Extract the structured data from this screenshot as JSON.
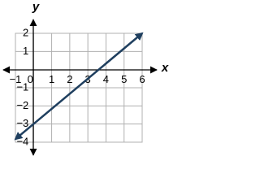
{
  "chart_data": {
    "type": "line",
    "xlabel": "x",
    "ylabel": "y",
    "x": [
      -1,
      6
    ],
    "series": [
      {
        "color": "#1f3f5f",
        "values": [
          -3.83,
          2
        ]
      }
    ],
    "xlim": [
      -1,
      6
    ],
    "ylim": [
      -4,
      2
    ],
    "xticks": [
      {
        "value": -1,
        "label": "−1"
      },
      0,
      1,
      2,
      3,
      4,
      5,
      6
    ],
    "yticks": [
      {
        "value": -4,
        "label": "−4"
      },
      {
        "value": -3,
        "label": "−3"
      },
      {
        "value": -2,
        "label": "−2"
      },
      {
        "value": -1,
        "label": "−1"
      },
      1,
      2
    ],
    "grid": true
  }
}
